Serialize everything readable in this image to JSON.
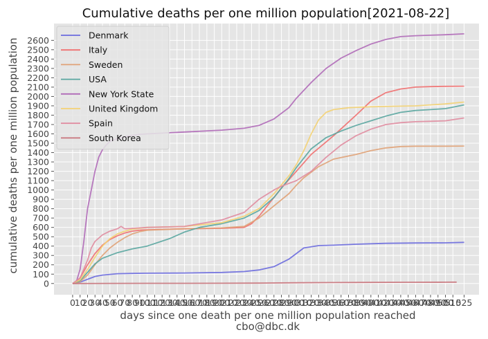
{
  "chart_data": {
    "type": "line",
    "title": "Cumulative deaths per one million population[2021-08-22]",
    "ylabel": "cumulative deaths per one million population",
    "xlabel": "days since one death per one million population reached",
    "footer": "cbo@dbc.dk",
    "ylim": [
      -120,
      2780
    ],
    "xlim": [
      -25,
      545
    ],
    "grid": true,
    "legend_position": "top-left",
    "yticks": [
      0,
      100,
      200,
      300,
      400,
      500,
      600,
      700,
      800,
      900,
      1000,
      1100,
      1200,
      1300,
      1400,
      1500,
      1600,
      1700,
      1800,
      1900,
      2000,
      2100,
      2200,
      2300,
      2400,
      2500,
      2600
    ],
    "xticks": [
      "0",
      "10",
      "20",
      "30",
      "40",
      "50",
      "60",
      "70",
      "80",
      "90",
      "100",
      "110",
      "120",
      "130",
      "140",
      "150",
      "160",
      "170",
      "180",
      "190",
      "200",
      "210",
      "220",
      "230",
      "240",
      "250",
      "260",
      "270",
      "280",
      "290",
      "300",
      "310",
      "320",
      "330",
      "340",
      "350",
      "360",
      "370",
      "380",
      "390",
      "400",
      "410",
      "420",
      "430",
      "440",
      "450",
      "460",
      "470",
      "480",
      "490",
      "500",
      "510",
      "525"
    ],
    "series": [
      {
        "name": "Denmark",
        "color": "#6b6bde",
        "x": [
          0,
          10,
          20,
          30,
          40,
          60,
          80,
          100,
          150,
          200,
          230,
          250,
          270,
          290,
          300,
          310,
          330,
          350,
          380,
          420,
          460,
          500,
          525
        ],
        "y": [
          0,
          15,
          45,
          75,
          90,
          105,
          108,
          110,
          112,
          118,
          128,
          145,
          180,
          260,
          320,
          380,
          405,
          410,
          420,
          430,
          433,
          435,
          440
        ]
      },
      {
        "name": "Italy",
        "color": "#f07070",
        "x": [
          0,
          5,
          10,
          20,
          30,
          40,
          50,
          60,
          70,
          80,
          90,
          100,
          150,
          200,
          230,
          240,
          250,
          260,
          280,
          300,
          320,
          350,
          380,
          400,
          420,
          440,
          460,
          480,
          500,
          525
        ],
        "y": [
          0,
          20,
          60,
          200,
          320,
          410,
          470,
          510,
          540,
          560,
          570,
          575,
          585,
          590,
          600,
          640,
          720,
          820,
          1020,
          1200,
          1380,
          1580,
          1800,
          1950,
          2040,
          2080,
          2100,
          2105,
          2108,
          2110
        ]
      },
      {
        "name": "Sweden",
        "color": "#e0a277",
        "x": [
          0,
          10,
          20,
          30,
          40,
          50,
          60,
          70,
          80,
          90,
          100,
          150,
          200,
          230,
          250,
          270,
          290,
          300,
          310,
          330,
          350,
          380,
          400,
          420,
          440,
          460,
          480,
          500,
          525
        ],
        "y": [
          0,
          20,
          90,
          200,
          300,
          380,
          440,
          490,
          530,
          555,
          570,
          585,
          595,
          610,
          700,
          830,
          960,
          1050,
          1130,
          1250,
          1330,
          1380,
          1420,
          1450,
          1465,
          1468,
          1468,
          1468,
          1470
        ]
      },
      {
        "name": "USA",
        "color": "#5aa6a0",
        "x": [
          0,
          10,
          20,
          30,
          40,
          60,
          80,
          100,
          130,
          150,
          170,
          200,
          230,
          250,
          270,
          290,
          300,
          320,
          340,
          360,
          380,
          400,
          420,
          440,
          460,
          480,
          500,
          525
        ],
        "y": [
          0,
          30,
          120,
          210,
          270,
          330,
          370,
          400,
          480,
          550,
          600,
          640,
          700,
          780,
          920,
          1120,
          1240,
          1440,
          1560,
          1630,
          1690,
          1740,
          1790,
          1830,
          1850,
          1860,
          1870,
          1910
        ]
      },
      {
        "name": "New York State",
        "color": "#b06ab8",
        "x": [
          0,
          5,
          10,
          15,
          20,
          25,
          30,
          35,
          40,
          45,
          50,
          60,
          70,
          80,
          90,
          100,
          150,
          200,
          230,
          250,
          270,
          290,
          300,
          320,
          340,
          360,
          380,
          400,
          420,
          440,
          460,
          480,
          500,
          525
        ],
        "y": [
          0,
          20,
          150,
          450,
          800,
          1000,
          1200,
          1350,
          1430,
          1480,
          1520,
          1550,
          1570,
          1585,
          1595,
          1600,
          1620,
          1640,
          1660,
          1690,
          1760,
          1880,
          1980,
          2150,
          2300,
          2410,
          2490,
          2560,
          2610,
          2640,
          2650,
          2655,
          2660,
          2670
        ]
      },
      {
        "name": "United Kingdom",
        "color": "#f3d173",
        "x": [
          0,
          10,
          20,
          30,
          40,
          50,
          60,
          70,
          80,
          90,
          100,
          150,
          200,
          230,
          250,
          270,
          290,
          300,
          310,
          320,
          330,
          340,
          350,
          370,
          400,
          430,
          460,
          480,
          500,
          525
        ],
        "y": [
          0,
          40,
          150,
          280,
          400,
          480,
          530,
          560,
          580,
          590,
          600,
          610,
          650,
          720,
          800,
          960,
          1150,
          1270,
          1420,
          1600,
          1750,
          1830,
          1860,
          1880,
          1890,
          1895,
          1900,
          1910,
          1920,
          1940
        ]
      },
      {
        "name": "Spain",
        "color": "#e08ca0",
        "x": [
          0,
          10,
          20,
          25,
          30,
          40,
          50,
          60,
          65,
          70,
          80,
          90,
          100,
          150,
          200,
          230,
          250,
          270,
          280,
          290,
          300,
          320,
          340,
          360,
          380,
          400,
          420,
          440,
          460,
          480,
          500,
          525
        ],
        "y": [
          0,
          60,
          250,
          380,
          450,
          520,
          560,
          585,
          610,
          585,
          590,
          595,
          600,
          610,
          680,
          760,
          900,
          1000,
          1040,
          1070,
          1100,
          1200,
          1350,
          1480,
          1580,
          1650,
          1700,
          1720,
          1730,
          1735,
          1740,
          1770
        ]
      },
      {
        "name": "South Korea",
        "color": "#c8727a",
        "x": [
          0,
          50,
          100,
          150,
          200,
          250,
          300,
          350,
          400,
          450,
          500,
          515
        ],
        "y": [
          0,
          1,
          2,
          2,
          3,
          4,
          8,
          10,
          12,
          13,
          14,
          15
        ]
      }
    ]
  }
}
